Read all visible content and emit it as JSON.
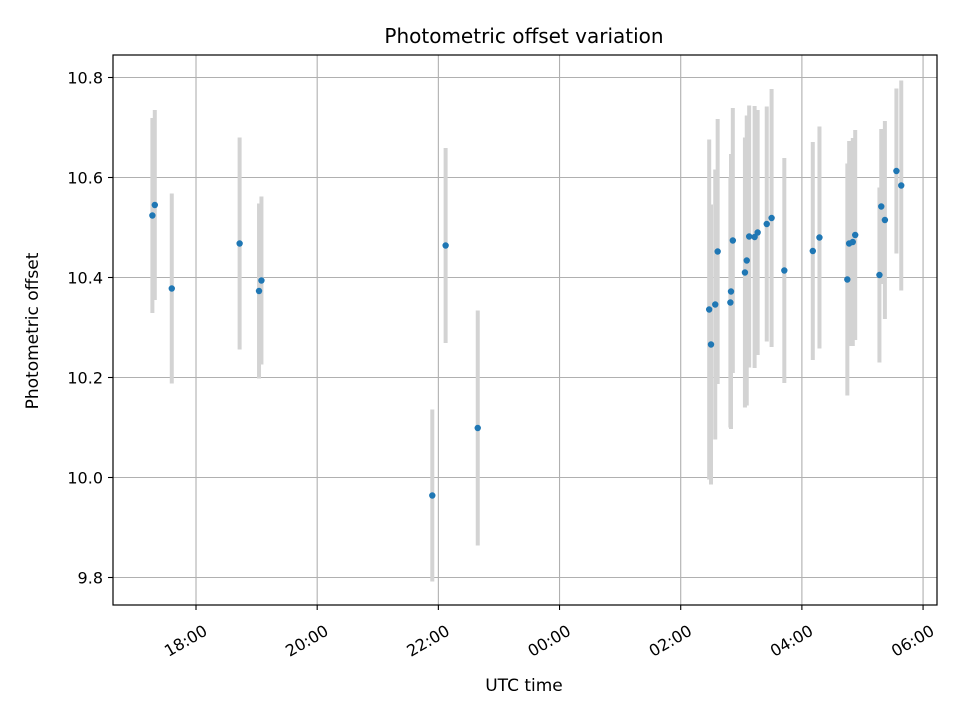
{
  "chart_data": {
    "type": "scatter",
    "title": "Photometric offset variation",
    "xlabel": "UTC time",
    "ylabel": "Photometric offset",
    "x_unit": "hours since 00:00 UTC",
    "xlim": [
      -7.37,
      6.23
    ],
    "ylim": [
      9.745,
      10.845
    ],
    "grid": true,
    "x_ticks": [
      {
        "value": -6,
        "label": "18:00"
      },
      {
        "value": -4,
        "label": "20:00"
      },
      {
        "value": -2,
        "label": "22:00"
      },
      {
        "value": 0,
        "label": "00:00"
      },
      {
        "value": 2,
        "label": "02:00"
      },
      {
        "value": 4,
        "label": "04:00"
      },
      {
        "value": 6,
        "label": "06:00"
      }
    ],
    "y_ticks": [
      {
        "value": 9.8,
        "label": "9.8"
      },
      {
        "value": 10.0,
        "label": "10.0"
      },
      {
        "value": 10.2,
        "label": "10.2"
      },
      {
        "value": 10.4,
        "label": "10.4"
      },
      {
        "value": 10.6,
        "label": "10.6"
      },
      {
        "value": 10.8,
        "label": "10.8"
      }
    ],
    "series": [
      {
        "name": "offset",
        "marker_color": "#1f77b4",
        "errorbar_color": "#d3d3d3",
        "points": [
          {
            "x": -6.72,
            "y": 10.524,
            "err": 0.195
          },
          {
            "x": -6.68,
            "y": 10.545,
            "err": 0.19
          },
          {
            "x": -6.4,
            "y": 10.378,
            "err": 0.19
          },
          {
            "x": -5.28,
            "y": 10.468,
            "err": 0.212
          },
          {
            "x": -4.96,
            "y": 10.373,
            "err": 0.175
          },
          {
            "x": -4.92,
            "y": 10.394,
            "err": 0.168
          },
          {
            "x": -2.1,
            "y": 9.964,
            "err": 0.172
          },
          {
            "x": -1.88,
            "y": 10.464,
            "err": 0.195
          },
          {
            "x": -1.35,
            "y": 10.099,
            "err": 0.235
          },
          {
            "x": 2.47,
            "y": 10.336,
            "err": 0.34
          },
          {
            "x": 2.5,
            "y": 10.266,
            "err": 0.28
          },
          {
            "x": 2.57,
            "y": 10.346,
            "err": 0.27
          },
          {
            "x": 2.61,
            "y": 10.452,
            "err": 0.265
          },
          {
            "x": 2.82,
            "y": 10.35,
            "err": 0.25
          },
          {
            "x": 2.83,
            "y": 10.372,
            "err": 0.275
          },
          {
            "x": 2.86,
            "y": 10.474,
            "err": 0.265
          },
          {
            "x": 3.06,
            "y": 10.41,
            "err": 0.27
          },
          {
            "x": 3.09,
            "y": 10.434,
            "err": 0.29
          },
          {
            "x": 3.13,
            "y": 10.482,
            "err": 0.262
          },
          {
            "x": 3.22,
            "y": 10.481,
            "err": 0.262
          },
          {
            "x": 3.27,
            "y": 10.49,
            "err": 0.245
          },
          {
            "x": 3.42,
            "y": 10.507,
            "err": 0.235
          },
          {
            "x": 3.5,
            "y": 10.519,
            "err": 0.258
          },
          {
            "x": 3.71,
            "y": 10.414,
            "err": 0.225
          },
          {
            "x": 4.18,
            "y": 10.453,
            "err": 0.218
          },
          {
            "x": 4.29,
            "y": 10.48,
            "err": 0.222
          },
          {
            "x": 4.75,
            "y": 10.396,
            "err": 0.232
          },
          {
            "x": 4.78,
            "y": 10.468,
            "err": 0.205
          },
          {
            "x": 4.84,
            "y": 10.471,
            "err": 0.208
          },
          {
            "x": 4.88,
            "y": 10.485,
            "err": 0.21
          },
          {
            "x": 5.28,
            "y": 10.405,
            "err": 0.175
          },
          {
            "x": 5.31,
            "y": 10.542,
            "err": 0.155
          },
          {
            "x": 5.37,
            "y": 10.515,
            "err": 0.198
          },
          {
            "x": 5.56,
            "y": 10.613,
            "err": 0.165
          },
          {
            "x": 5.64,
            "y": 10.584,
            "err": 0.21
          }
        ]
      }
    ]
  }
}
